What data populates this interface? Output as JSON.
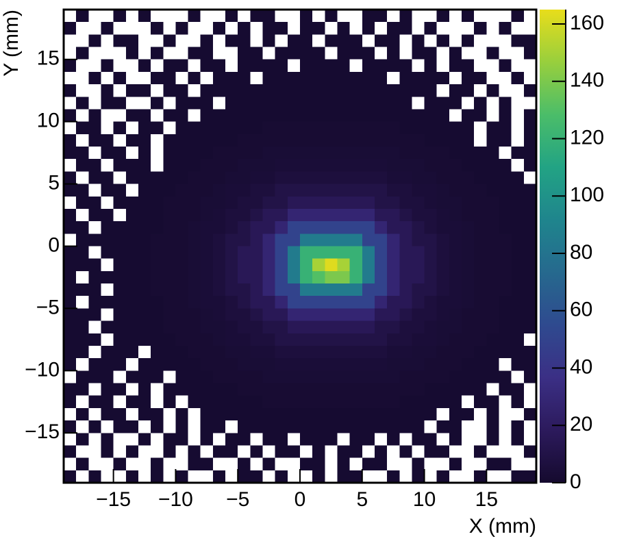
{
  "chart_data": {
    "type": "heatmap",
    "xlabel": "X (mm)",
    "ylabel": "Y (mm)",
    "xlim": [
      -19,
      19
    ],
    "ylim": [
      -19,
      19
    ],
    "xticks": [
      {
        "value": -15,
        "label": "−15"
      },
      {
        "value": -10,
        "label": "−10"
      },
      {
        "value": -5,
        "label": "−5"
      },
      0,
      5,
      10,
      15
    ],
    "yticks": [
      {
        "value": -15,
        "label": "−15"
      },
      {
        "value": -10,
        "label": "−10"
      },
      {
        "value": -5,
        "label": "−5"
      },
      0,
      5,
      10,
      15
    ],
    "zlim": [
      0,
      165
    ],
    "zticks": [
      0,
      20,
      40,
      60,
      80,
      100,
      120,
      140,
      160
    ],
    "empty_color": "#ffffff",
    "colormap": [
      "#150a2e",
      "#2c1a5c",
      "#3b2f85",
      "#2f4a8f",
      "#26698e",
      "#1f858d",
      "#22a384",
      "#4bbd69",
      "#98cf3d",
      "#e8dd1b"
    ],
    "z": [
      [
        0,
        1,
        0,
        0,
        1,
        0,
        1,
        0,
        0,
        0,
        1,
        0,
        0,
        1,
        0,
        1,
        1,
        0,
        0,
        1,
        0,
        1,
        0,
        0,
        1,
        1,
        0,
        1,
        0,
        0,
        1,
        0,
        1,
        0,
        0,
        0,
        1,
        0
      ],
      [
        1,
        0,
        0,
        1,
        0,
        0,
        0,
        1,
        0,
        1,
        0,
        0,
        1,
        0,
        1,
        0,
        1,
        1,
        0,
        1,
        1,
        0,
        1,
        0,
        1,
        0,
        1,
        1,
        0,
        1,
        0,
        0,
        0,
        1,
        0,
        1,
        0,
        0
      ],
      [
        0,
        0,
        1,
        0,
        1,
        1,
        0,
        0,
        1,
        0,
        0,
        1,
        0,
        1,
        1,
        0,
        1,
        0,
        1,
        1,
        0,
        1,
        1,
        1,
        0,
        1,
        1,
        0,
        1,
        0,
        1,
        0,
        1,
        0,
        0,
        0,
        1,
        1
      ],
      [
        0,
        1,
        0,
        0,
        0,
        1,
        0,
        1,
        0,
        0,
        1,
        1,
        0,
        0,
        1,
        1,
        0,
        1,
        1,
        1,
        1,
        0,
        1,
        1,
        1,
        0,
        1,
        0,
        1,
        1,
        0,
        1,
        0,
        0,
        1,
        0,
        0,
        1
      ],
      [
        1,
        0,
        0,
        1,
        0,
        0,
        1,
        0,
        1,
        1,
        0,
        1,
        1,
        0,
        1,
        1,
        1,
        1,
        0,
        1,
        1,
        1,
        1,
        0,
        1,
        1,
        1,
        1,
        0,
        1,
        0,
        1,
        1,
        0,
        0,
        1,
        0,
        0
      ],
      [
        0,
        0,
        1,
        0,
        1,
        0,
        0,
        1,
        1,
        0,
        1,
        0,
        1,
        1,
        1,
        0,
        1,
        1,
        1,
        1,
        1,
        1,
        1,
        1,
        1,
        1,
        0,
        1,
        1,
        1,
        1,
        0,
        1,
        1,
        0,
        0,
        1,
        0
      ],
      [
        1,
        0,
        0,
        1,
        0,
        1,
        1,
        0,
        1,
        1,
        0,
        1,
        1,
        1,
        1,
        1,
        1,
        1,
        1,
        1,
        1,
        1,
        1,
        1,
        1,
        1,
        1,
        1,
        1,
        1,
        0,
        1,
        1,
        0,
        1,
        0,
        0,
        1
      ],
      [
        0,
        1,
        0,
        1,
        1,
        0,
        0,
        1,
        0,
        1,
        1,
        1,
        0,
        1,
        1,
        1,
        1,
        1,
        1,
        1,
        1,
        1,
        1,
        1,
        1,
        1,
        1,
        1,
        0,
        1,
        1,
        1,
        0,
        1,
        0,
        1,
        0,
        0
      ],
      [
        1,
        0,
        1,
        0,
        0,
        1,
        1,
        0,
        1,
        1,
        0,
        1,
        1,
        1,
        1,
        1,
        1,
        1,
        1,
        1,
        1,
        1,
        1,
        1,
        1,
        1,
        1,
        1,
        1,
        1,
        1,
        0,
        1,
        1,
        0,
        1,
        0,
        1
      ],
      [
        0,
        1,
        1,
        0,
        1,
        0,
        1,
        1,
        0,
        1,
        1,
        1,
        1,
        1,
        1,
        1,
        2,
        2,
        2,
        2,
        2,
        2,
        2,
        2,
        2,
        2,
        2,
        1,
        1,
        1,
        1,
        1,
        1,
        0,
        1,
        1,
        0,
        1
      ],
      [
        1,
        0,
        1,
        1,
        0,
        1,
        1,
        0,
        1,
        1,
        1,
        1,
        1,
        1,
        2,
        2,
        2,
        2,
        2,
        2,
        2,
        2,
        2,
        2,
        2,
        2,
        2,
        2,
        2,
        1,
        1,
        1,
        1,
        0,
        1,
        1,
        0,
        1
      ],
      [
        1,
        1,
        0,
        1,
        1,
        0,
        1,
        0,
        1,
        1,
        1,
        1,
        2,
        2,
        2,
        2,
        3,
        3,
        3,
        3,
        3,
        3,
        3,
        3,
        3,
        3,
        3,
        2,
        2,
        2,
        2,
        1,
        1,
        1,
        1,
        0,
        1,
        1
      ],
      [
        0,
        1,
        1,
        0,
        1,
        1,
        1,
        0,
        1,
        1,
        1,
        2,
        2,
        2,
        3,
        3,
        3,
        4,
        4,
        4,
        4,
        4,
        4,
        4,
        4,
        4,
        3,
        3,
        3,
        2,
        2,
        2,
        1,
        1,
        1,
        1,
        0,
        1
      ],
      [
        1,
        0,
        1,
        1,
        0,
        1,
        1,
        1,
        1,
        1,
        2,
        2,
        2,
        3,
        3,
        4,
        4,
        6,
        6,
        6,
        6,
        6,
        6,
        6,
        6,
        6,
        4,
        4,
        3,
        3,
        2,
        2,
        2,
        1,
        1,
        1,
        1,
        0
      ],
      [
        1,
        1,
        0,
        1,
        1,
        0,
        1,
        1,
        1,
        2,
        2,
        2,
        3,
        4,
        4,
        6,
        6,
        10,
        10,
        10,
        10,
        10,
        10,
        10,
        10,
        10,
        6,
        6,
        4,
        4,
        3,
        2,
        2,
        2,
        1,
        1,
        1,
        1
      ],
      [
        0,
        1,
        1,
        0,
        1,
        1,
        1,
        1,
        2,
        2,
        2,
        3,
        3,
        4,
        6,
        6,
        10,
        10,
        16,
        16,
        16,
        16,
        16,
        16,
        16,
        10,
        10,
        6,
        6,
        4,
        3,
        3,
        2,
        2,
        2,
        1,
        1,
        1
      ],
      [
        1,
        0,
        1,
        1,
        0,
        1,
        1,
        1,
        2,
        2,
        2,
        3,
        4,
        6,
        6,
        10,
        16,
        16,
        28,
        28,
        28,
        28,
        28,
        28,
        28,
        16,
        16,
        10,
        6,
        6,
        4,
        3,
        2,
        2,
        2,
        1,
        1,
        1
      ],
      [
        1,
        1,
        0,
        1,
        1,
        1,
        1,
        1,
        2,
        2,
        3,
        4,
        4,
        6,
        10,
        16,
        16,
        28,
        50,
        50,
        50,
        50,
        50,
        50,
        50,
        28,
        16,
        16,
        10,
        6,
        4,
        4,
        3,
        2,
        2,
        1,
        1,
        1
      ],
      [
        0,
        1,
        1,
        1,
        1,
        1,
        1,
        2,
        2,
        2,
        3,
        4,
        6,
        10,
        10,
        16,
        28,
        50,
        50,
        85,
        85,
        85,
        85,
        85,
        50,
        50,
        28,
        16,
        10,
        10,
        6,
        4,
        3,
        2,
        2,
        2,
        1,
        1
      ],
      [
        1,
        1,
        0,
        1,
        1,
        1,
        1,
        2,
        2,
        2,
        3,
        4,
        6,
        10,
        16,
        16,
        28,
        50,
        85,
        120,
        120,
        120,
        120,
        120,
        85,
        50,
        28,
        16,
        16,
        10,
        6,
        4,
        3,
        2,
        2,
        2,
        1,
        1
      ],
      [
        1,
        1,
        1,
        0,
        1,
        1,
        1,
        2,
        2,
        2,
        3,
        4,
        6,
        10,
        16,
        16,
        28,
        50,
        85,
        120,
        150,
        163,
        150,
        120,
        85,
        50,
        28,
        16,
        16,
        10,
        6,
        4,
        3,
        2,
        2,
        2,
        1,
        1
      ],
      [
        1,
        0,
        1,
        1,
        1,
        1,
        1,
        2,
        2,
        2,
        3,
        4,
        6,
        10,
        16,
        16,
        28,
        50,
        85,
        120,
        130,
        140,
        140,
        120,
        85,
        50,
        28,
        16,
        16,
        10,
        6,
        4,
        3,
        2,
        2,
        2,
        1,
        1
      ],
      [
        1,
        1,
        1,
        0,
        1,
        1,
        1,
        2,
        2,
        2,
        3,
        4,
        6,
        10,
        10,
        16,
        28,
        50,
        50,
        85,
        85,
        85,
        85,
        85,
        50,
        50,
        28,
        16,
        10,
        10,
        6,
        4,
        3,
        2,
        2,
        2,
        1,
        1
      ],
      [
        1,
        0,
        1,
        1,
        1,
        1,
        1,
        1,
        2,
        2,
        3,
        4,
        4,
        6,
        10,
        16,
        16,
        28,
        50,
        50,
        50,
        50,
        50,
        50,
        50,
        28,
        16,
        16,
        10,
        6,
        4,
        4,
        3,
        2,
        2,
        1,
        1,
        1
      ],
      [
        1,
        1,
        1,
        0,
        1,
        1,
        1,
        1,
        2,
        2,
        2,
        3,
        4,
        6,
        6,
        10,
        16,
        16,
        28,
        28,
        28,
        28,
        28,
        28,
        28,
        16,
        16,
        10,
        6,
        6,
        4,
        3,
        2,
        2,
        2,
        1,
        1,
        1
      ],
      [
        1,
        1,
        0,
        1,
        1,
        1,
        1,
        1,
        2,
        2,
        2,
        3,
        3,
        4,
        6,
        6,
        10,
        10,
        16,
        16,
        16,
        16,
        16,
        16,
        16,
        10,
        10,
        6,
        6,
        4,
        3,
        3,
        2,
        2,
        2,
        1,
        1,
        1
      ],
      [
        1,
        1,
        1,
        0,
        1,
        1,
        1,
        1,
        1,
        2,
        2,
        2,
        3,
        4,
        4,
        6,
        6,
        10,
        10,
        10,
        10,
        10,
        10,
        10,
        10,
        10,
        6,
        6,
        4,
        4,
        3,
        2,
        2,
        2,
        1,
        1,
        1,
        0
      ],
      [
        1,
        1,
        0,
        1,
        1,
        1,
        0,
        1,
        1,
        1,
        2,
        2,
        2,
        3,
        3,
        4,
        4,
        6,
        6,
        6,
        6,
        6,
        6,
        6,
        6,
        6,
        4,
        4,
        3,
        3,
        2,
        2,
        2,
        1,
        1,
        1,
        1,
        1
      ],
      [
        1,
        0,
        1,
        1,
        1,
        0,
        1,
        1,
        1,
        1,
        1,
        2,
        2,
        2,
        3,
        3,
        3,
        4,
        4,
        4,
        4,
        4,
        4,
        4,
        4,
        4,
        3,
        3,
        3,
        2,
        2,
        2,
        1,
        1,
        1,
        0,
        1,
        1
      ],
      [
        0,
        1,
        1,
        1,
        0,
        1,
        1,
        1,
        0,
        1,
        1,
        1,
        2,
        2,
        2,
        2,
        3,
        3,
        3,
        3,
        3,
        3,
        3,
        3,
        3,
        3,
        3,
        2,
        2,
        2,
        2,
        1,
        1,
        1,
        1,
        1,
        0,
        1
      ],
      [
        1,
        1,
        0,
        1,
        1,
        0,
        1,
        0,
        1,
        1,
        1,
        1,
        1,
        1,
        2,
        2,
        2,
        2,
        2,
        2,
        2,
        2,
        2,
        2,
        2,
        2,
        2,
        2,
        2,
        1,
        1,
        1,
        1,
        1,
        0,
        1,
        1,
        0
      ],
      [
        1,
        0,
        1,
        1,
        0,
        1,
        1,
        0,
        1,
        0,
        1,
        1,
        1,
        1,
        1,
        1,
        2,
        2,
        2,
        2,
        2,
        2,
        2,
        2,
        2,
        2,
        2,
        1,
        1,
        1,
        1,
        1,
        0,
        1,
        1,
        0,
        1,
        0
      ],
      [
        0,
        1,
        0,
        1,
        1,
        0,
        1,
        1,
        0,
        1,
        0,
        1,
        1,
        1,
        1,
        1,
        1,
        1,
        1,
        1,
        1,
        1,
        1,
        1,
        1,
        1,
        1,
        1,
        1,
        1,
        0,
        1,
        1,
        0,
        1,
        0,
        0,
        1
      ],
      [
        1,
        0,
        1,
        0,
        1,
        1,
        0,
        1,
        0,
        1,
        0,
        1,
        1,
        0,
        1,
        1,
        1,
        1,
        1,
        1,
        1,
        1,
        1,
        1,
        1,
        1,
        1,
        1,
        1,
        0,
        1,
        1,
        0,
        0,
        1,
        0,
        1,
        0
      ],
      [
        0,
        1,
        0,
        1,
        0,
        0,
        1,
        0,
        1,
        1,
        0,
        1,
        0,
        1,
        1,
        0,
        1,
        1,
        0,
        1,
        1,
        1,
        0,
        1,
        1,
        0,
        1,
        0,
        1,
        1,
        0,
        1,
        0,
        0,
        1,
        0,
        1,
        0
      ],
      [
        1,
        0,
        0,
        1,
        0,
        1,
        0,
        0,
        1,
        0,
        1,
        0,
        1,
        1,
        0,
        1,
        0,
        1,
        1,
        0,
        1,
        0,
        1,
        1,
        0,
        1,
        0,
        1,
        0,
        1,
        1,
        0,
        0,
        1,
        0,
        0,
        0,
        1
      ],
      [
        0,
        1,
        0,
        0,
        1,
        0,
        0,
        1,
        0,
        0,
        1,
        1,
        0,
        0,
        1,
        0,
        1,
        0,
        0,
        1,
        1,
        0,
        1,
        0,
        1,
        1,
        0,
        0,
        1,
        0,
        0,
        1,
        0,
        0,
        1,
        1,
        0,
        0
      ],
      [
        1,
        0,
        1,
        0,
        0,
        1,
        0,
        1,
        0,
        1,
        0,
        0,
        1,
        0,
        1,
        1,
        0,
        1,
        0,
        0,
        1,
        0,
        1,
        1,
        0,
        0,
        1,
        0,
        1,
        0,
        1,
        0,
        0,
        1,
        0,
        0,
        1,
        1
      ]
    ]
  }
}
